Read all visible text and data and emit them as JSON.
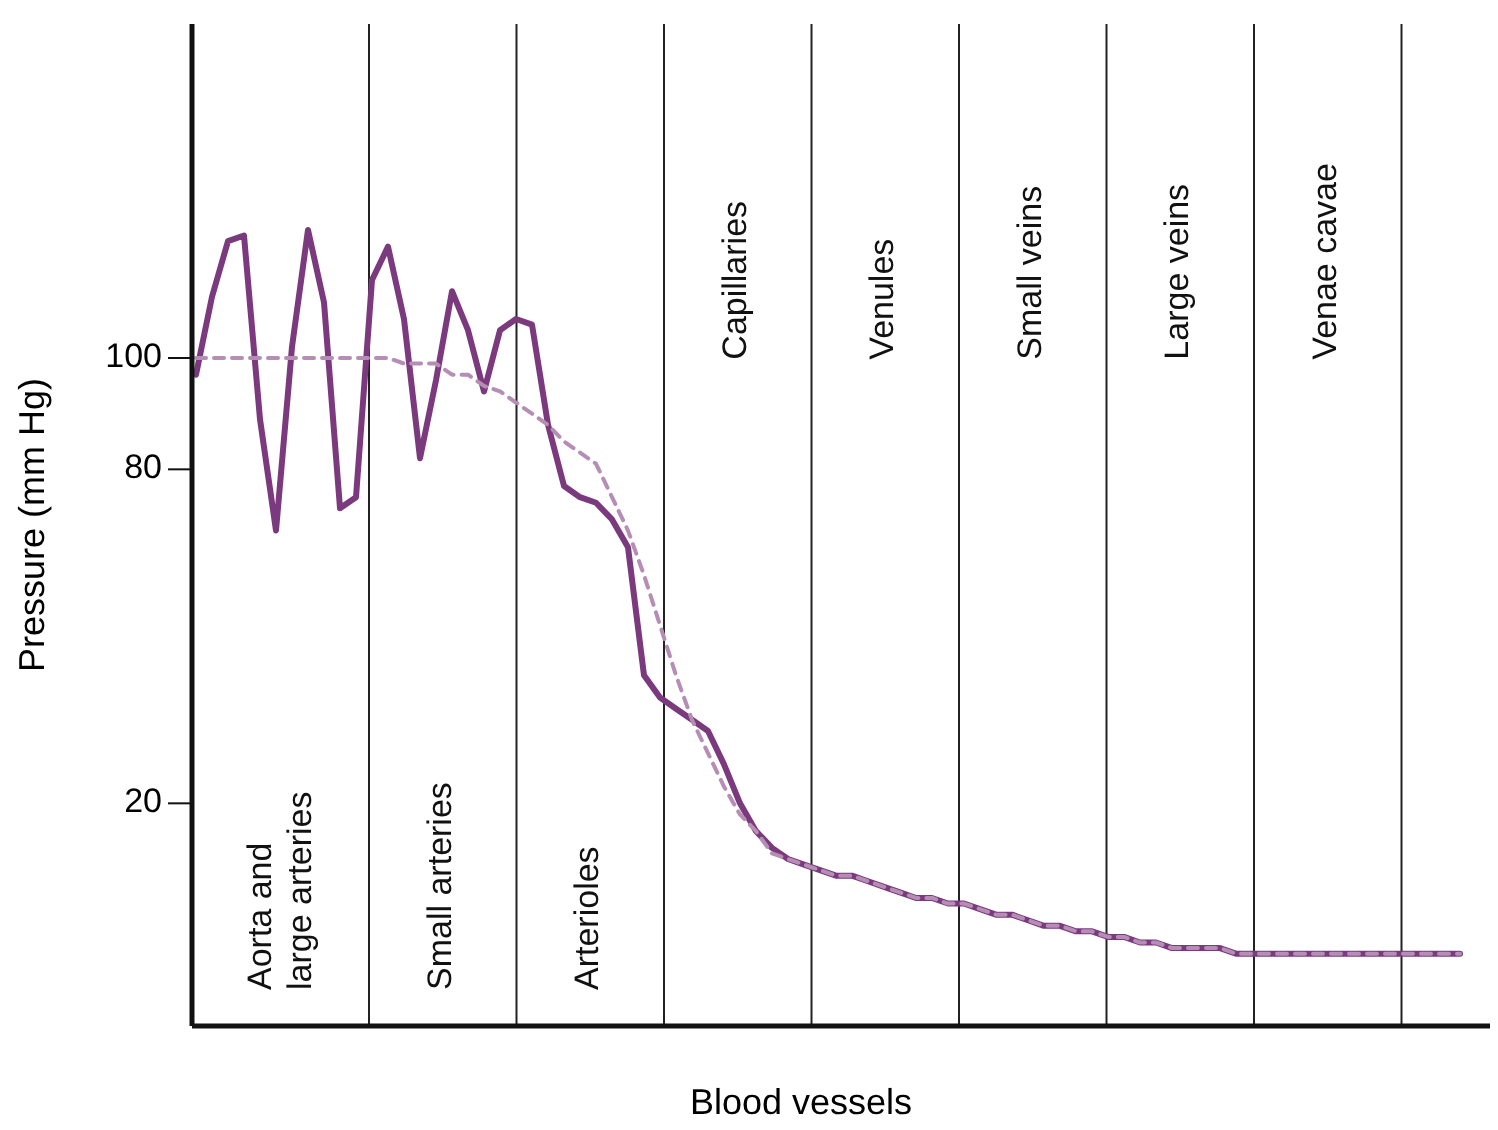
{
  "chart_data": {
    "type": "line",
    "xlabel": "Blood vessels",
    "ylabel": "Pressure (mm Hg)",
    "ylim": [
      -20,
      160
    ],
    "yticks": [
      20,
      80,
      100
    ],
    "tick_labels": "y",
    "grid": "x",
    "categories": [
      null,
      null,
      null,
      null,
      null,
      null,
      null,
      null,
      null,
      null,
      null,
      null,
      null,
      null,
      null,
      null,
      null,
      null,
      null,
      null,
      null,
      null,
      null,
      null,
      null,
      null,
      null,
      null,
      null,
      null,
      null,
      null,
      null,
      null,
      null,
      null,
      null,
      null,
      null,
      null,
      null,
      null,
      null,
      null,
      null,
      null,
      null,
      null,
      null,
      null,
      null,
      null,
      null,
      null,
      null,
      null,
      null,
      null,
      null,
      null,
      null,
      null,
      null,
      null,
      null,
      null,
      null,
      null,
      null,
      null,
      null,
      null,
      null,
      null,
      null,
      null,
      null,
      null,
      null,
      null
    ],
    "series": [
      {
        "color": "#7b3a7e",
        "line_style": "solid",
        "values": [
          97,
          111,
          121,
          122,
          89,
          69,
          102,
          123,
          110,
          73,
          75,
          114,
          120,
          107,
          82,
          96,
          112,
          105,
          94,
          105,
          107,
          106,
          88,
          77,
          75,
          74,
          71,
          66,
          43,
          39,
          37,
          35,
          33,
          27,
          20,
          15,
          12,
          10,
          9,
          8,
          7,
          7,
          6,
          5,
          4,
          3,
          3,
          2,
          2,
          1,
          0,
          0,
          -1,
          -2,
          -2,
          -3,
          -3,
          -4,
          -4,
          -5,
          -5,
          -6,
          -6,
          -6,
          -6,
          -7,
          -7,
          -7,
          -7,
          -7,
          -7,
          -7,
          -7,
          -7,
          -7,
          -7,
          -7,
          -7,
          -7,
          -7
        ]
      },
      {
        "color": "#b58db5",
        "line_style": "dashed",
        "values": [
          100,
          100,
          100,
          100,
          100,
          100,
          100,
          100,
          100,
          100,
          100,
          100,
          100,
          99,
          99,
          99,
          97,
          97,
          95,
          94,
          92,
          90,
          88,
          85,
          83,
          81,
          75,
          69,
          61,
          52,
          43,
          35,
          29,
          23,
          18,
          15,
          11,
          10,
          9,
          8,
          7,
          7,
          6,
          5,
          4,
          3,
          3,
          2,
          2,
          1,
          0,
          0,
          -1,
          -2,
          -2,
          -3,
          -3,
          -4,
          -4,
          -5,
          -5,
          -6,
          -6,
          -6,
          -6,
          -7,
          -7,
          -7,
          -7,
          -7,
          -7,
          -7,
          -7,
          -7,
          -7,
          -7,
          -7,
          -7,
          -7,
          -7
        ]
      }
    ],
    "annotations": [
      "Aorta and large arteries",
      "Small arteries",
      "Arterioles",
      "Capillaries",
      "Venules",
      "Small veins",
      "Large veins",
      "Venae cavae"
    ]
  }
}
